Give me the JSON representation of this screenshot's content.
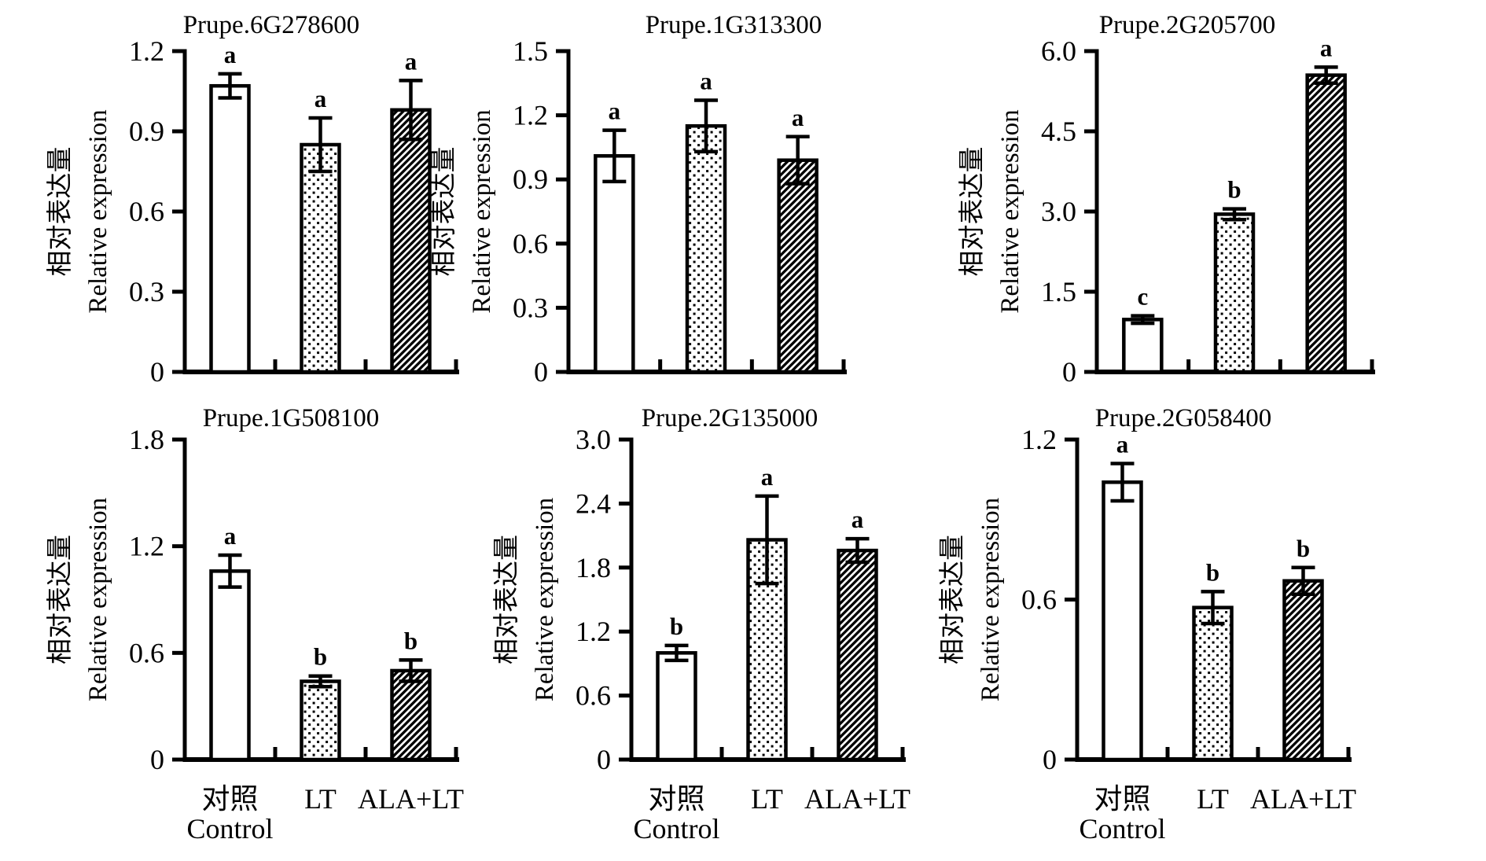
{
  "y_axis": {
    "label_zh": "相对表达量",
    "label_en": "Relative expression"
  },
  "x_axis": {
    "categories": [
      {
        "key": "control",
        "lines": [
          "对照",
          "Control"
        ]
      },
      {
        "key": "lt",
        "lines": [
          "LT"
        ]
      },
      {
        "key": "ala-lt",
        "lines": [
          "ALA+LT"
        ]
      }
    ]
  },
  "bar_fill_styles": [
    "open-white",
    "dotted",
    "diagonal-hatch"
  ],
  "chart_data": [
    {
      "type": "bar",
      "title": "Prupe.6G278600",
      "ylim": [
        0,
        1.2
      ],
      "yticks": [
        0,
        0.3,
        0.6,
        0.9,
        1.2
      ],
      "ytick_labels": [
        "0",
        "0.3",
        "0.6",
        "0.9",
        "1.2"
      ],
      "categories": [
        "对照 Control",
        "LT",
        "ALA+LT"
      ],
      "values": [
        1.07,
        0.85,
        0.98
      ],
      "errors": [
        0.045,
        0.1,
        0.11
      ],
      "sig_letters": [
        "a",
        "a",
        "a"
      ]
    },
    {
      "type": "bar",
      "title": "Prupe.1G313300",
      "ylim": [
        0,
        1.5
      ],
      "yticks": [
        0,
        0.3,
        0.6,
        0.9,
        1.2,
        1.5
      ],
      "ytick_labels": [
        "0",
        "0.3",
        "0.6",
        "0.9",
        "1.2",
        "1.5"
      ],
      "categories": [
        "对照 Control",
        "LT",
        "ALA+LT"
      ],
      "values": [
        1.01,
        1.15,
        0.99
      ],
      "errors": [
        0.12,
        0.12,
        0.11
      ],
      "sig_letters": [
        "a",
        "a",
        "a"
      ]
    },
    {
      "type": "bar",
      "title": "Prupe.2G205700",
      "ylim": [
        0,
        6.0
      ],
      "yticks": [
        0,
        1.5,
        3.0,
        4.5,
        6.0
      ],
      "ytick_labels": [
        "0",
        "1.5",
        "3.0",
        "4.5",
        "6.0"
      ],
      "categories": [
        "对照 Control",
        "LT",
        "ALA+LT"
      ],
      "values": [
        0.98,
        2.95,
        5.55
      ],
      "errors": [
        0.07,
        0.1,
        0.15
      ],
      "sig_letters": [
        "c",
        "b",
        "a"
      ]
    },
    {
      "type": "bar",
      "title": "Prupe.1G508100",
      "ylim": [
        0,
        1.8
      ],
      "yticks": [
        0,
        0.6,
        1.2,
        1.8
      ],
      "ytick_labels": [
        "0",
        "0.6",
        "1.2",
        "1.8"
      ],
      "categories": [
        "对照 Control",
        "LT",
        "ALA+LT"
      ],
      "values": [
        1.06,
        0.44,
        0.5
      ],
      "errors": [
        0.09,
        0.03,
        0.06
      ],
      "sig_letters": [
        "a",
        "b",
        "b"
      ]
    },
    {
      "type": "bar",
      "title": "Prupe.2G135000",
      "ylim": [
        0,
        3.0
      ],
      "yticks": [
        0,
        0.6,
        1.2,
        1.8,
        2.4,
        3.0
      ],
      "ytick_labels": [
        "0",
        "0.6",
        "1.2",
        "1.8",
        "2.4",
        "3.0"
      ],
      "categories": [
        "对照 Control",
        "LT",
        "ALA+LT"
      ],
      "values": [
        1.0,
        2.06,
        1.96
      ],
      "errors": [
        0.07,
        0.41,
        0.11
      ],
      "sig_letters": [
        "b",
        "a",
        "a"
      ]
    },
    {
      "type": "bar",
      "title": "Prupe.2G058400",
      "ylim": [
        0,
        1.2
      ],
      "yticks": [
        0,
        0.6,
        1.2
      ],
      "ytick_labels": [
        "0",
        "0.6",
        "1.2"
      ],
      "categories": [
        "对照 Control",
        "LT",
        "ALA+LT"
      ],
      "values": [
        1.04,
        0.57,
        0.67
      ],
      "errors": [
        0.07,
        0.06,
        0.05
      ],
      "sig_letters": [
        "a",
        "b",
        "b"
      ]
    }
  ]
}
